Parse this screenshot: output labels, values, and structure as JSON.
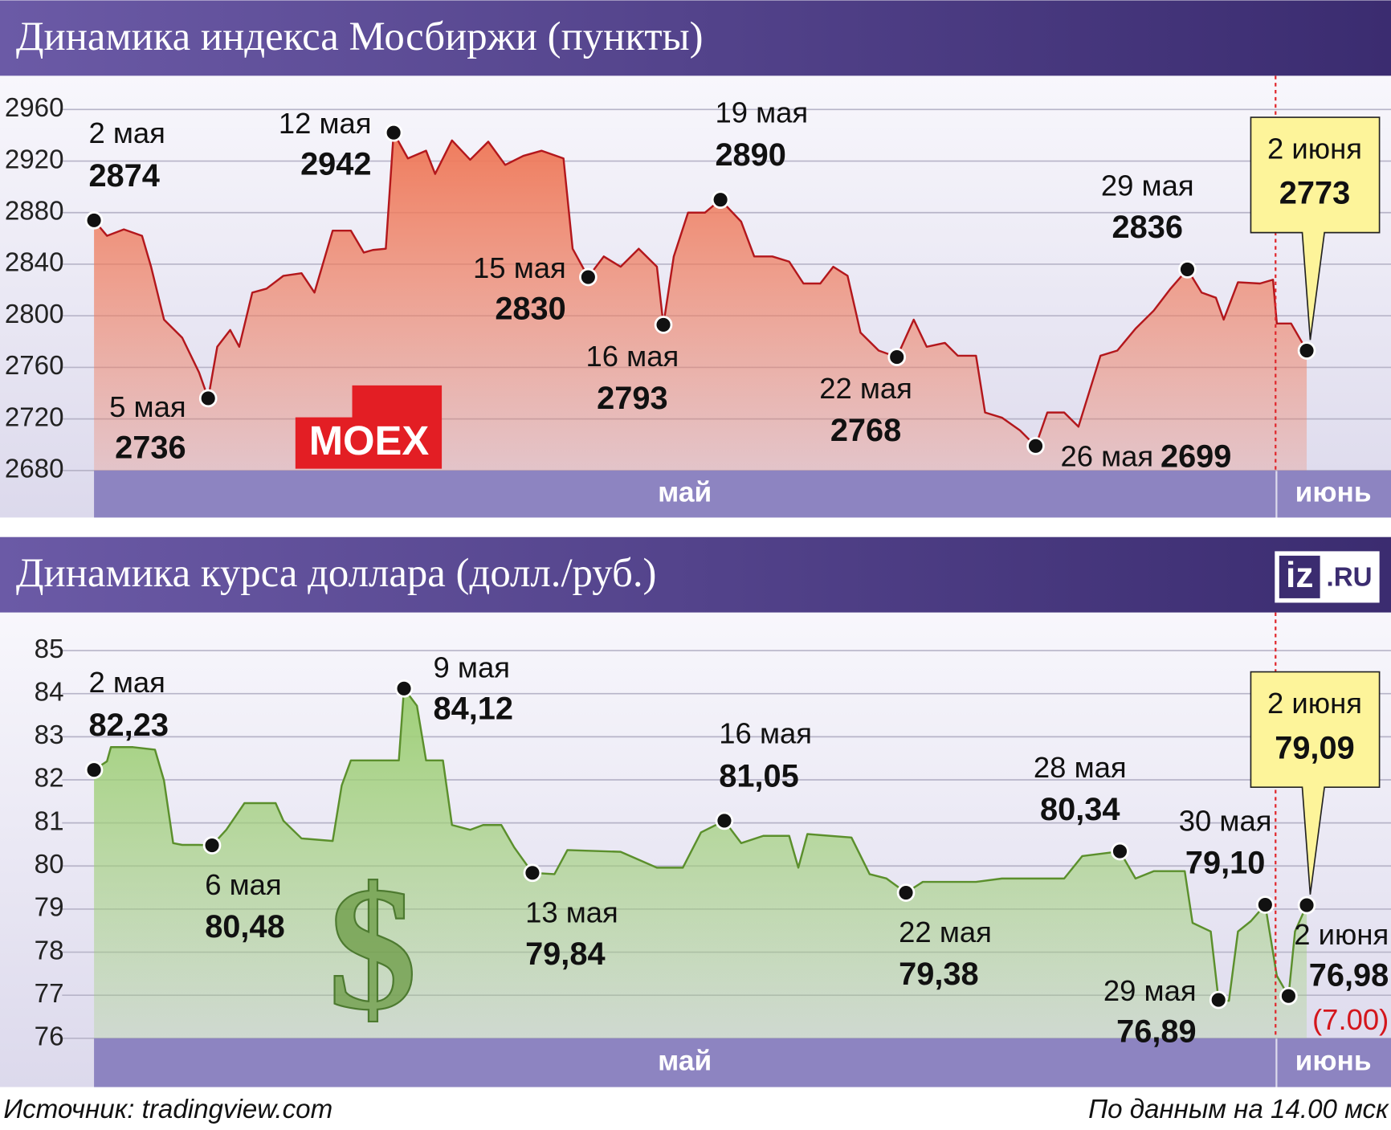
{
  "chart_data": [
    {
      "type": "area",
      "title": "Динамика индекса Мосбиржи (пункты)",
      "color": "#b3171c",
      "fill": "#ef7b5c",
      "x": [
        0,
        1.0,
        2.3,
        3.7,
        4.4,
        5.4,
        6.8,
        8.1,
        8.8,
        9.5,
        10.5,
        11.2,
        12.2,
        13.3,
        14.6,
        16.0,
        17.0,
        18.4,
        19.8,
        20.8,
        21.5,
        22.5,
        23.1,
        24.2,
        25.6,
        26.3,
        27.6,
        29.0,
        30.4,
        31.7,
        33.1,
        34.5,
        36.2,
        36.9,
        38.1,
        39.3,
        40.6,
        42.0,
        43.4,
        43.9,
        44.7,
        45.8,
        47.1,
        48.3,
        49.9,
        50.9,
        52.3,
        53.6,
        54.7,
        56.0,
        57.0,
        58.1,
        59.1,
        60.5,
        61.9,
        63.2,
        64.2,
        65.6,
        66.6,
        68.0,
        68.7,
        70.0,
        71.4,
        72.6,
        73.5,
        74.8,
        75.9,
        77.6,
        78.9,
        80.3,
        81.7,
        83.0,
        84.3,
        85.4,
        86.5,
        87.1,
        88.2,
        89.9,
        90.9,
        91.2,
        92.3,
        93.5
      ],
      "values": [
        2874,
        2862,
        2867,
        2862,
        2838,
        2797,
        2783,
        2756,
        2736,
        2776,
        2789,
        2776,
        2818,
        2821,
        2831,
        2833,
        2818,
        2866,
        2866,
        2849,
        2851,
        2852,
        2942,
        2922,
        2928,
        2910,
        2936,
        2921,
        2935,
        2917,
        2924,
        2928,
        2922,
        2852,
        2830,
        2846,
        2838,
        2852,
        2838,
        2793,
        2846,
        2880,
        2880,
        2890,
        2873,
        2846,
        2846,
        2842,
        2825,
        2825,
        2838,
        2831,
        2787,
        2773,
        2768,
        2797,
        2776,
        2779,
        2769,
        2769,
        2725,
        2721,
        2711,
        2699,
        2725,
        2725,
        2714,
        2769,
        2773,
        2790,
        2804,
        2821,
        2836,
        2818,
        2814,
        2797,
        2826,
        2825,
        2828,
        2794,
        2794,
        2773
      ],
      "xlim": [
        0,
        100
      ],
      "ylim": [
        2680,
        2960
      ],
      "yticks": [
        2680,
        2720,
        2760,
        2800,
        2840,
        2880,
        2920,
        2960
      ],
      "grid": true,
      "months": [
        {
          "label": "май",
          "from": 0,
          "to": 91.1
        },
        {
          "label": "июнь",
          "from": 91.1,
          "to": 100
        }
      ],
      "logo": "MOEX",
      "annotations": [
        {
          "date": "2 мая",
          "x": 0,
          "value": 2874,
          "side": "above-right"
        },
        {
          "date": "5 мая",
          "x": 8.8,
          "value": 2736,
          "side": "below-left"
        },
        {
          "date": "12 мая",
          "x": 23.1,
          "value": 2942,
          "side": "left"
        },
        {
          "date": "15 мая",
          "x": 38.1,
          "value": 2830,
          "side": "left"
        },
        {
          "date": "16 мая",
          "x": 43.9,
          "value": 2793,
          "side": "below"
        },
        {
          "date": "19 мая",
          "x": 48.3,
          "value": 2890,
          "side": "above-right"
        },
        {
          "date": "22 мая",
          "x": 61.9,
          "value": 2768,
          "side": "below"
        },
        {
          "date": "26 мая",
          "x": 72.6,
          "value": 2699,
          "side": "right"
        },
        {
          "date": "29 мая",
          "x": 84.3,
          "value": 2836,
          "side": "above-left"
        },
        {
          "date": "2 июня",
          "x": 93.5,
          "value": 2773,
          "side": "callout"
        }
      ]
    },
    {
      "type": "area",
      "title": "Динамика курса доллара (долл./руб.)",
      "color": "#5b8f2c",
      "fill": "#9fcf78",
      "x": [
        0,
        1.0,
        1.3,
        3.0,
        4.7,
        5.4,
        6.1,
        6.8,
        8.1,
        9.1,
        10.2,
        11.6,
        14.0,
        14.6,
        16.0,
        18.4,
        19.1,
        19.8,
        23.5,
        23.9,
        24.9,
        25.6,
        26.9,
        27.6,
        29.0,
        30.0,
        31.4,
        32.4,
        33.8,
        35.5,
        36.5,
        40.6,
        43.4,
        45.4,
        46.8,
        48.6,
        49.9,
        51.6,
        53.6,
        54.3,
        55.0,
        58.4,
        59.8,
        61.1,
        62.6,
        63.9,
        68.0,
        70.0,
        74.8,
        76.2,
        79.1,
        80.3,
        81.7,
        84.1,
        84.7,
        86.1,
        86.7,
        87.5,
        88.2,
        89.2,
        90.3,
        91.2,
        92.1,
        92.6,
        93.5
      ],
      "values": [
        82.23,
        82.43,
        82.76,
        82.76,
        82.7,
        81.98,
        80.53,
        80.49,
        80.49,
        80.48,
        80.84,
        81.46,
        81.46,
        81.05,
        80.64,
        80.58,
        81.87,
        82.45,
        82.45,
        84.12,
        83.72,
        82.45,
        82.45,
        80.95,
        80.84,
        80.95,
        80.95,
        80.43,
        79.84,
        79.81,
        80.37,
        80.33,
        79.96,
        79.96,
        80.78,
        81.05,
        80.53,
        80.7,
        80.7,
        79.96,
        80.74,
        80.66,
        79.81,
        79.71,
        79.38,
        79.63,
        79.63,
        79.71,
        79.71,
        80.23,
        80.34,
        79.71,
        79.88,
        79.88,
        78.68,
        78.48,
        76.89,
        76.87,
        78.48,
        78.72,
        79.1,
        77.45,
        76.98,
        78.48,
        79.09
      ],
      "xlim": [
        0,
        100
      ],
      "ylim": [
        76,
        85
      ],
      "yticks": [
        76,
        77,
        78,
        79,
        80,
        81,
        82,
        83,
        84,
        85
      ],
      "grid": true,
      "months": [
        {
          "label": "май",
          "from": 0,
          "to": 91.1
        },
        {
          "label": "июнь",
          "from": 91.1,
          "to": 100
        }
      ],
      "icon": "$",
      "annotations": [
        {
          "date": "2 мая",
          "x": 0,
          "value": 82.23,
          "value_label": "82,23",
          "side": "above-right"
        },
        {
          "date": "6 мая",
          "x": 9.1,
          "value": 80.48,
          "value_label": "80,48",
          "side": "below-right"
        },
        {
          "date": "9 мая",
          "x": 23.9,
          "value": 84.12,
          "value_label": "84,12",
          "side": "right-up"
        },
        {
          "date": "13 мая",
          "x": 33.8,
          "value": 79.84,
          "value_label": "79,84",
          "side": "below-right"
        },
        {
          "date": "16 мая",
          "x": 48.6,
          "value": 81.05,
          "value_label": "81,05",
          "side": "above-right"
        },
        {
          "date": "22 мая",
          "x": 62.6,
          "value": 79.38,
          "value_label": "79,38",
          "side": "below-right"
        },
        {
          "date": "28 мая",
          "x": 79.1,
          "value": 80.34,
          "value_label": "80,34",
          "side": "above-left"
        },
        {
          "date": "29 мая",
          "x": 86.7,
          "value": 76.89,
          "value_label": "76,89",
          "side": "left"
        },
        {
          "date": "30 мая",
          "x": 90.3,
          "value": 79.1,
          "value_label": "79,10",
          "side": "above-left"
        },
        {
          "date": "2 июня",
          "x": 92.1,
          "value": 76.98,
          "value_label": "76,98",
          "note": "(7.00)",
          "side": "right-column"
        },
        {
          "date": "2 июня",
          "x": 93.5,
          "value": 79.09,
          "value_label": "79,09",
          "side": "callout"
        }
      ]
    }
  ],
  "brand": {
    "left": "iz",
    "right": ".RU"
  },
  "source": "Источник: tradingview.com",
  "as_of": "По данным на 14.00 мск"
}
